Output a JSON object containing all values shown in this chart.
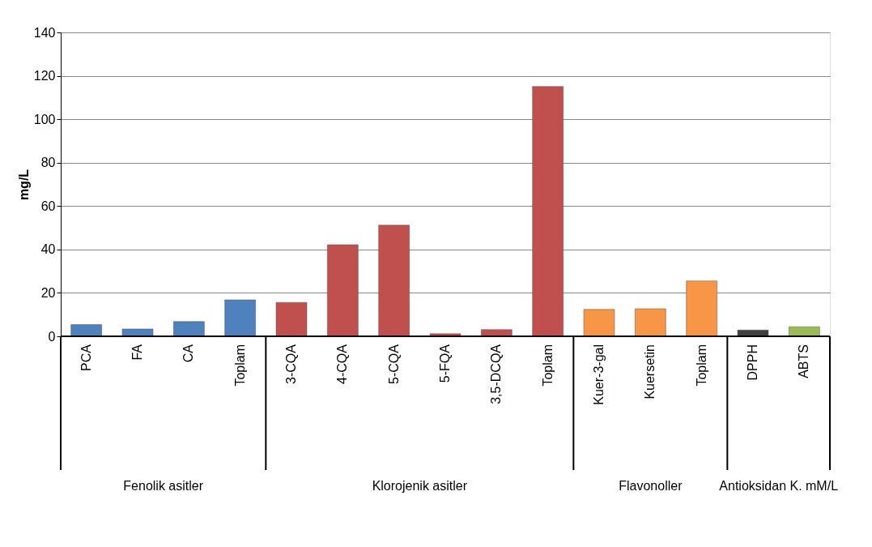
{
  "chart_data": {
    "type": "bar",
    "ylabel": "mg/L",
    "categories": [
      "PCA",
      "FA",
      "CA",
      "Toplam",
      "3-CQA",
      "4-CQA",
      "5-CQA",
      "5-FQA",
      "3,5-DCQA",
      "Toplam",
      "Kuer-3-gal",
      "Kuersetin",
      "Toplam",
      "DPPH",
      "ABTS"
    ],
    "series": [
      {
        "color": "#4f81bd",
        "values": [
          5.4,
          3.4,
          6.8,
          16.8,
          null,
          null,
          null,
          null,
          null,
          null,
          null,
          null,
          null,
          null,
          null
        ]
      },
      {
        "color": "#c0504d",
        "values": [
          null,
          null,
          null,
          null,
          15.6,
          42.2,
          51.2,
          1.2,
          3.1,
          115.1,
          null,
          null,
          null,
          null,
          null
        ]
      },
      {
        "color": "#f79646",
        "values": [
          null,
          null,
          null,
          null,
          null,
          null,
          null,
          null,
          null,
          null,
          12.4,
          12.7,
          25.5,
          null,
          null
        ]
      },
      {
        "colors": [
          null,
          null,
          null,
          null,
          null,
          null,
          null,
          null,
          null,
          null,
          null,
          null,
          null,
          "#404040",
          "#9bbb59"
        ],
        "values": [
          null,
          null,
          null,
          null,
          null,
          null,
          null,
          null,
          null,
          null,
          null,
          null,
          null,
          2.9,
          4.4
        ]
      }
    ],
    "annotations": [
      "Fenolik asitler",
      "Klorojenik asitler",
      "Flavonoller",
      "Antioksidan K. mM/L"
    ],
    "ylim": [
      0,
      140
    ],
    "yticks": [
      0,
      20,
      40,
      60,
      80,
      100,
      120,
      140
    ],
    "grid": "y"
  }
}
